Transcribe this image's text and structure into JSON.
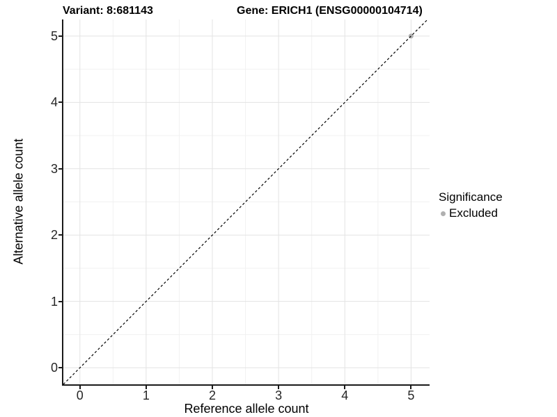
{
  "title_left": "Variant: 8:681143",
  "title_right": "Gene: ERICH1 (ENSG00000104714)",
  "x_axis": {
    "label": "Reference allele count"
  },
  "y_axis": {
    "label": "Alternative allele count"
  },
  "legend": {
    "title": "Significance",
    "items": [
      {
        "label": "Excluded",
        "color": "#b0b0b0"
      }
    ]
  },
  "chart_data": {
    "type": "scatter",
    "title_left": "Variant: 8:681143",
    "title_right": "Gene: ERICH1 (ENSG00000104714)",
    "xlabel": "Reference allele count",
    "ylabel": "Alternative allele count",
    "xlim": [
      -0.25,
      5.28
    ],
    "ylim": [
      -0.25,
      5.25
    ],
    "x_major_ticks": [
      0,
      1,
      2,
      3,
      4,
      5
    ],
    "y_major_ticks": [
      0,
      1,
      2,
      3,
      4,
      5
    ],
    "x_minor_gridlines": [
      0.5,
      1.5,
      2.5,
      3.5,
      4.5
    ],
    "y_minor_gridlines": [
      0.5,
      1.5,
      2.5,
      3.5,
      4.5
    ],
    "grid": "major-and-minor",
    "legend_position": "right",
    "series": [
      {
        "name": "Excluded",
        "color": "#b0b0b0",
        "points": [
          {
            "x": 5,
            "y": 5
          }
        ]
      }
    ],
    "identity_line": {
      "style": "dashed",
      "color": "#000000",
      "from": -0.25,
      "to": 5.25
    }
  },
  "colors": {
    "grid_major": "#e3e3e3",
    "grid_minor": "#f1f1f1",
    "axis_line": "#1a1a1a",
    "tick_text": "#262626",
    "excluded_gray": "#b0b0b0"
  }
}
